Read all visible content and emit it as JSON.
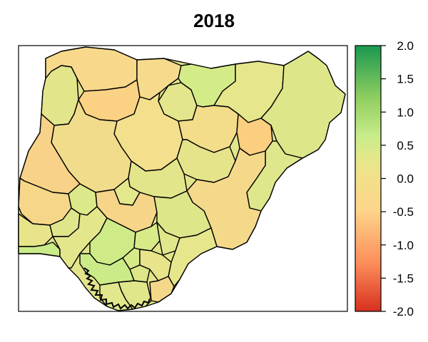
{
  "title": "2018",
  "colorbar": {
    "min": -2.0,
    "max": 2.0,
    "ticks": [
      "2.0",
      "1.5",
      "1.0",
      "0.5",
      "0.0",
      "-0.5",
      "-1.0",
      "-1.5",
      "-2.0"
    ],
    "colors": [
      "#d7301f",
      "#fc8d59",
      "#fdd58a",
      "#f2e08a",
      "#e3e88a",
      "#c8ec8a",
      "#91cf60",
      "#1a9850"
    ]
  }
}
